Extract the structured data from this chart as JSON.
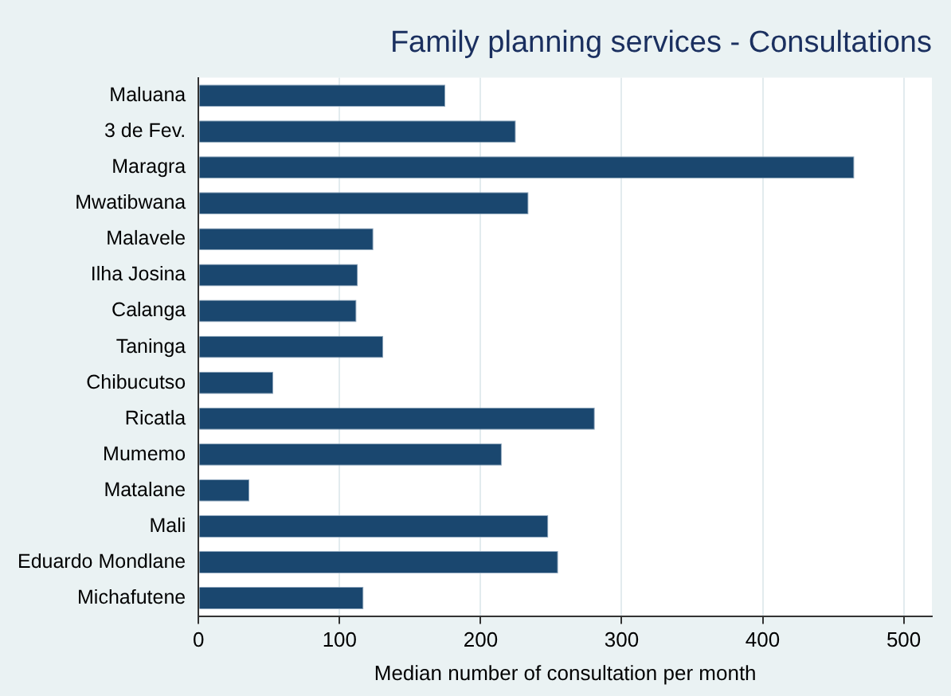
{
  "chart_data": {
    "type": "bar",
    "orientation": "horizontal",
    "title": "Family planning services - Consultations",
    "xlabel": "Median number of consultation per month",
    "categories": [
      "Maluana",
      "3 de Fev.",
      "Maragra",
      "Mwatibwana",
      "Malavele",
      "Ilha Josina",
      "Calanga",
      "Taninga",
      "Chibucutso",
      "Ricatla",
      "Mumemo",
      "Matalane",
      "Mali",
      "Eduardo Mondlane",
      "Michafutene"
    ],
    "values": [
      175,
      225,
      465,
      234,
      124,
      113,
      112,
      131,
      53,
      281,
      215,
      36,
      248,
      255,
      117
    ],
    "color": "#1a476f",
    "xlim": [
      0,
      520
    ],
    "xticks": [
      0,
      100,
      200,
      300,
      400,
      500
    ],
    "grid": "x",
    "legend": false
  }
}
